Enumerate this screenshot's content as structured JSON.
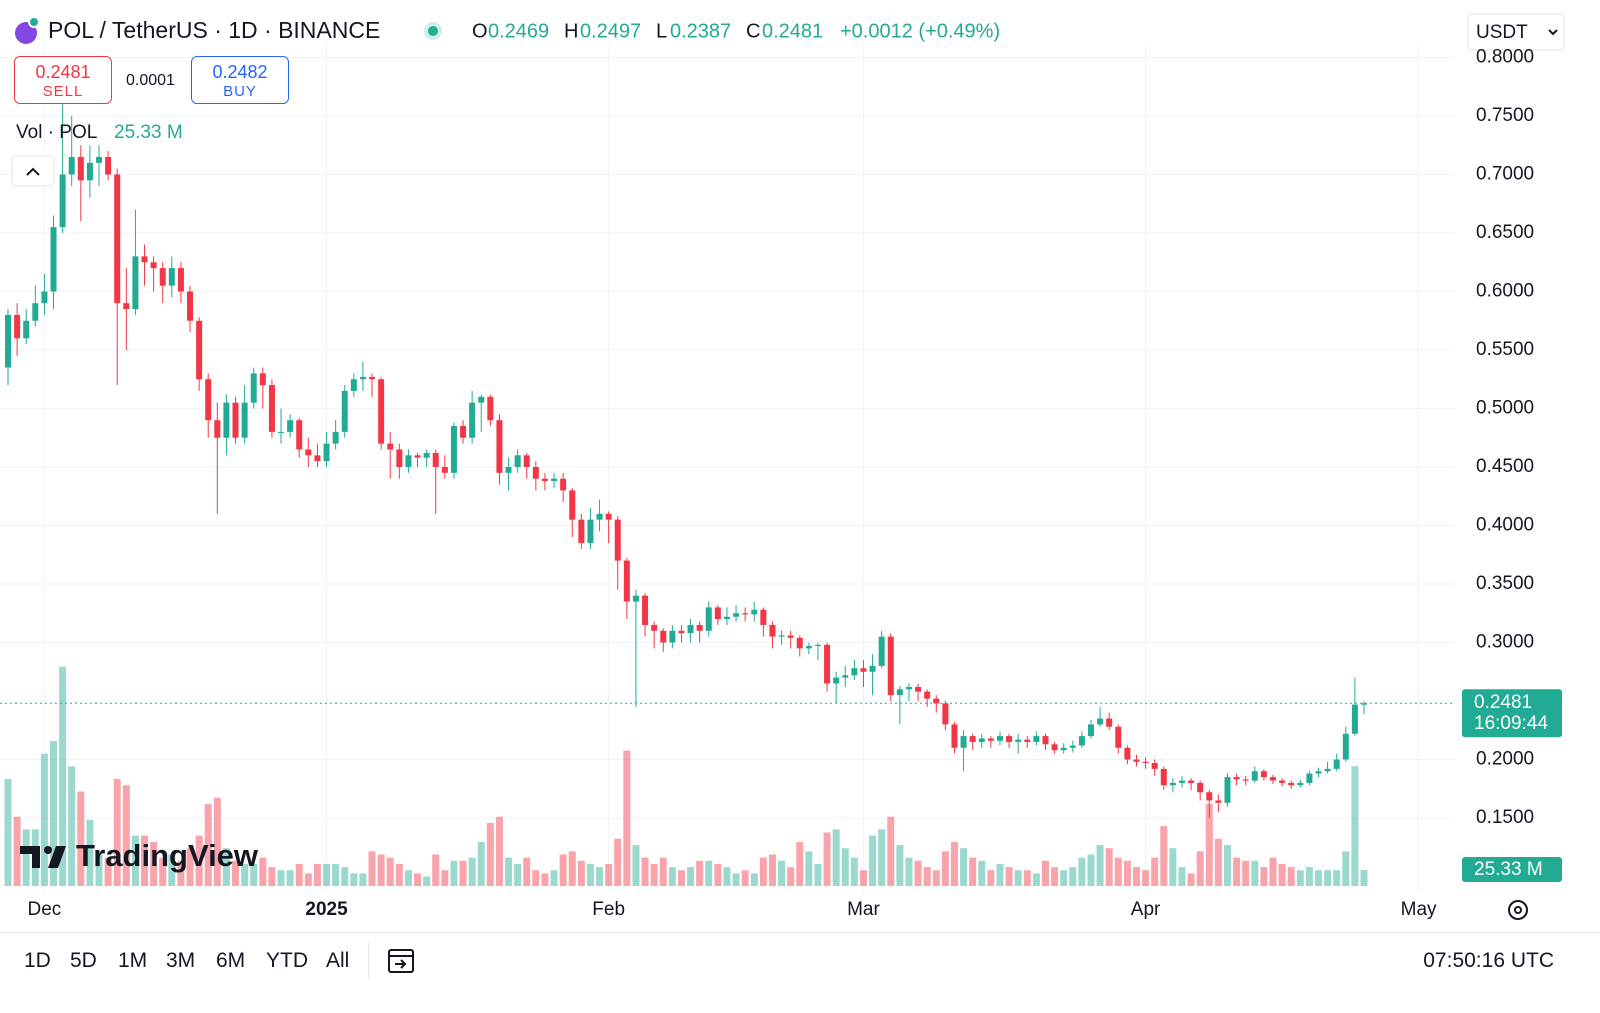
{
  "chart_data": {
    "type": "candlestick",
    "title": "POL / TetherUS · 1D · BINANCE",
    "ohlc_labels": [
      "O",
      "H",
      "L",
      "C"
    ],
    "change": "+0.0012 (+0.49%)",
    "currency": "USDT",
    "sell_label": "SELL",
    "buy_label": "BUY",
    "buy_price": 0.2482,
    "spread": 0.0001,
    "volume_title": "Vol · POL",
    "volume_last_label": "25.33 M",
    "countdown": "16:09:44",
    "brand": "TradingView",
    "ranges": [
      "1D",
      "5D",
      "1M",
      "3M",
      "6M",
      "YTD",
      "All"
    ],
    "time": "07:50:16 UTC",
    "up_color": "#22ab94",
    "down_color": "#f23645",
    "grid": true,
    "xlim": [
      -0.88,
      159
    ],
    "xticks": [
      {
        "value": 4,
        "label": "Dec"
      },
      {
        "value": 35,
        "label": "2025"
      },
      {
        "value": 66,
        "label": "Feb"
      },
      {
        "value": 94,
        "label": "Mar"
      },
      {
        "value": 125,
        "label": "Apr"
      },
      {
        "value": 155,
        "label": "May"
      }
    ],
    "ylim": [
      0.0859,
      0.8423
    ],
    "yticks": [
      {
        "value": 0.15,
        "label": "0.1500"
      },
      {
        "value": 0.2,
        "label": "0.2000"
      },
      {
        "value": 0.25,
        "label": "0.2500"
      },
      {
        "value": 0.3,
        "label": "0.3000"
      },
      {
        "value": 0.35,
        "label": "0.3500"
      },
      {
        "value": 0.4,
        "label": "0.4000"
      },
      {
        "value": 0.45,
        "label": "0.4500"
      },
      {
        "value": 0.5,
        "label": "0.5000"
      },
      {
        "value": 0.55,
        "label": "0.5500"
      },
      {
        "value": 0.6,
        "label": "0.6000"
      },
      {
        "value": 0.65,
        "label": "0.6500"
      },
      {
        "value": 0.7,
        "label": "0.7000"
      },
      {
        "value": 0.75,
        "label": "0.7500"
      },
      {
        "value": 0.8,
        "label": "0.8000"
      }
    ],
    "x": [
      0,
      1,
      2,
      3,
      4,
      5,
      6,
      7,
      8,
      9,
      10,
      11,
      12,
      13,
      14,
      15,
      16,
      17,
      18,
      19,
      20,
      21,
      22,
      23,
      24,
      25,
      26,
      27,
      28,
      29,
      30,
      31,
      32,
      33,
      34,
      35,
      36,
      37,
      38,
      39,
      40,
      41,
      42,
      43,
      44,
      45,
      46,
      47,
      48,
      49,
      50,
      51,
      52,
      53,
      54,
      55,
      56,
      57,
      58,
      59,
      60,
      61,
      62,
      63,
      64,
      65,
      66,
      67,
      68,
      69,
      70,
      71,
      72,
      73,
      74,
      75,
      76,
      77,
      78,
      79,
      80,
      81,
      82,
      83,
      84,
      85,
      86,
      87,
      88,
      89,
      90,
      91,
      92,
      93,
      94,
      95,
      96,
      97,
      98,
      99,
      100,
      101,
      102,
      103,
      104,
      105,
      106,
      107,
      108,
      109,
      110,
      111,
      112,
      113,
      114,
      115,
      116,
      117,
      118,
      119,
      120,
      121,
      122,
      123,
      124,
      125,
      126,
      127,
      128,
      129,
      130,
      131,
      132,
      133,
      134,
      135,
      136,
      137,
      138,
      139,
      140,
      141,
      142,
      143,
      144,
      145,
      146,
      147,
      148,
      149
    ],
    "open": [
      0.535,
      0.58,
      0.56,
      0.575,
      0.59,
      0.6,
      0.655,
      0.7,
      0.715,
      0.695,
      0.71,
      0.715,
      0.7,
      0.59,
      0.585,
      0.63,
      0.625,
      0.62,
      0.605,
      0.62,
      0.6,
      0.575,
      0.525,
      0.49,
      0.475,
      0.505,
      0.475,
      0.505,
      0.53,
      0.52,
      0.48,
      0.48,
      0.49,
      0.465,
      0.46,
      0.455,
      0.47,
      0.48,
      0.515,
      0.525,
      0.527,
      0.525,
      0.47,
      0.465,
      0.45,
      0.46,
      0.458,
      0.462,
      0.45,
      0.445,
      0.485,
      0.475,
      0.505,
      0.51,
      0.49,
      0.445,
      0.45,
      0.46,
      0.45,
      0.44,
      0.438,
      0.44,
      0.43,
      0.405,
      0.385,
      0.405,
      0.41,
      0.405,
      0.37,
      0.335,
      0.34,
      0.315,
      0.31,
      0.3,
      0.31,
      0.308,
      0.315,
      0.31,
      0.33,
      0.32,
      0.322,
      0.325,
      0.324,
      0.328,
      0.315,
      0.305,
      0.306,
      0.304,
      0.295,
      0.297,
      0.298,
      0.265,
      0.27,
      0.272,
      0.278,
      0.275,
      0.28,
      0.305,
      0.255,
      0.26,
      0.262,
      0.258,
      0.252,
      0.248,
      0.23,
      0.21,
      0.22,
      0.215,
      0.218,
      0.216,
      0.22,
      0.215,
      0.217,
      0.215,
      0.22,
      0.213,
      0.208,
      0.21,
      0.212,
      0.22,
      0.23,
      0.235,
      0.228,
      0.21,
      0.2,
      0.198,
      0.197,
      0.192,
      0.178,
      0.18,
      0.182,
      0.18,
      0.172,
      0.165,
      0.163,
      0.185,
      0.183,
      0.182,
      0.19,
      0.185,
      0.182,
      0.18,
      0.178,
      0.18,
      0.188,
      0.19,
      0.192,
      0.2,
      0.222,
      0.2469
    ],
    "high": [
      0.585,
      0.59,
      0.585,
      0.605,
      0.615,
      0.665,
      0.76,
      0.75,
      0.725,
      0.725,
      0.725,
      0.72,
      0.705,
      0.62,
      0.67,
      0.64,
      0.63,
      0.625,
      0.63,
      0.625,
      0.605,
      0.578,
      0.53,
      0.505,
      0.512,
      0.51,
      0.52,
      0.535,
      0.535,
      0.525,
      0.5,
      0.495,
      0.492,
      0.475,
      0.47,
      0.48,
      0.49,
      0.52,
      0.53,
      0.54,
      0.53,
      0.527,
      0.48,
      0.47,
      0.465,
      0.462,
      0.465,
      0.465,
      0.46,
      0.488,
      0.49,
      0.515,
      0.512,
      0.512,
      0.495,
      0.458,
      0.465,
      0.462,
      0.455,
      0.445,
      0.445,
      0.445,
      0.432,
      0.41,
      0.415,
      0.422,
      0.412,
      0.408,
      0.372,
      0.345,
      0.342,
      0.318,
      0.312,
      0.315,
      0.315,
      0.32,
      0.318,
      0.335,
      0.332,
      0.33,
      0.332,
      0.33,
      0.335,
      0.33,
      0.318,
      0.31,
      0.31,
      0.306,
      0.3,
      0.3,
      0.3,
      0.275,
      0.28,
      0.285,
      0.285,
      0.29,
      0.31,
      0.308,
      0.263,
      0.265,
      0.265,
      0.26,
      0.255,
      0.25,
      0.232,
      0.225,
      0.222,
      0.222,
      0.22,
      0.224,
      0.222,
      0.222,
      0.22,
      0.224,
      0.222,
      0.215,
      0.214,
      0.216,
      0.224,
      0.234,
      0.245,
      0.24,
      0.23,
      0.212,
      0.204,
      0.202,
      0.2,
      0.194,
      0.184,
      0.186,
      0.184,
      0.182,
      0.174,
      0.17,
      0.188,
      0.188,
      0.186,
      0.194,
      0.192,
      0.187,
      0.184,
      0.182,
      0.183,
      0.19,
      0.193,
      0.198,
      0.205,
      0.228,
      0.27,
      0.2497
    ],
    "low": [
      0.52,
      0.545,
      0.555,
      0.57,
      0.58,
      0.585,
      0.65,
      0.69,
      0.66,
      0.68,
      0.69,
      0.695,
      0.52,
      0.55,
      0.58,
      0.605,
      0.6,
      0.59,
      0.595,
      0.59,
      0.565,
      0.515,
      0.475,
      0.41,
      0.46,
      0.47,
      0.47,
      0.5,
      0.5,
      0.475,
      0.47,
      0.475,
      0.458,
      0.45,
      0.45,
      0.45,
      0.465,
      0.475,
      0.51,
      0.515,
      0.51,
      0.465,
      0.44,
      0.44,
      0.445,
      0.45,
      0.45,
      0.41,
      0.44,
      0.44,
      0.47,
      0.47,
      0.48,
      0.485,
      0.435,
      0.43,
      0.445,
      0.44,
      0.43,
      0.43,
      0.432,
      0.42,
      0.39,
      0.38,
      0.38,
      0.395,
      0.385,
      0.345,
      0.32,
      0.245,
      0.305,
      0.295,
      0.292,
      0.295,
      0.3,
      0.3,
      0.3,
      0.305,
      0.315,
      0.315,
      0.318,
      0.318,
      0.318,
      0.305,
      0.295,
      0.298,
      0.295,
      0.288,
      0.29,
      0.285,
      0.258,
      0.248,
      0.262,
      0.268,
      0.262,
      0.255,
      0.278,
      0.25,
      0.23,
      0.25,
      0.25,
      0.245,
      0.24,
      0.225,
      0.205,
      0.19,
      0.208,
      0.21,
      0.21,
      0.212,
      0.21,
      0.205,
      0.21,
      0.212,
      0.208,
      0.205,
      0.205,
      0.206,
      0.21,
      0.218,
      0.228,
      0.225,
      0.205,
      0.196,
      0.194,
      0.192,
      0.186,
      0.174,
      0.172,
      0.176,
      0.174,
      0.165,
      0.15,
      0.155,
      0.16,
      0.178,
      0.178,
      0.18,
      0.182,
      0.179,
      0.177,
      0.175,
      0.176,
      0.178,
      0.185,
      0.188,
      0.19,
      0.198,
      0.22,
      0.2387
    ],
    "close": [
      0.58,
      0.56,
      0.575,
      0.59,
      0.6,
      0.655,
      0.7,
      0.715,
      0.695,
      0.71,
      0.715,
      0.7,
      0.59,
      0.585,
      0.63,
      0.625,
      0.62,
      0.605,
      0.62,
      0.6,
      0.575,
      0.525,
      0.49,
      0.475,
      0.505,
      0.475,
      0.505,
      0.53,
      0.52,
      0.48,
      0.48,
      0.49,
      0.465,
      0.46,
      0.455,
      0.47,
      0.48,
      0.515,
      0.525,
      0.527,
      0.525,
      0.47,
      0.465,
      0.45,
      0.46,
      0.458,
      0.462,
      0.45,
      0.445,
      0.485,
      0.475,
      0.505,
      0.51,
      0.49,
      0.445,
      0.45,
      0.46,
      0.45,
      0.44,
      0.438,
      0.44,
      0.43,
      0.405,
      0.385,
      0.405,
      0.41,
      0.405,
      0.37,
      0.335,
      0.34,
      0.315,
      0.31,
      0.3,
      0.31,
      0.308,
      0.315,
      0.31,
      0.33,
      0.32,
      0.322,
      0.325,
      0.324,
      0.328,
      0.315,
      0.305,
      0.306,
      0.304,
      0.295,
      0.297,
      0.298,
      0.265,
      0.27,
      0.272,
      0.278,
      0.275,
      0.28,
      0.305,
      0.255,
      0.26,
      0.262,
      0.258,
      0.252,
      0.248,
      0.23,
      0.21,
      0.22,
      0.215,
      0.218,
      0.216,
      0.22,
      0.215,
      0.217,
      0.215,
      0.22,
      0.213,
      0.208,
      0.21,
      0.212,
      0.22,
      0.23,
      0.235,
      0.228,
      0.21,
      0.2,
      0.198,
      0.197,
      0.192,
      0.178,
      0.18,
      0.182,
      0.18,
      0.172,
      0.165,
      0.163,
      0.185,
      0.183,
      0.182,
      0.19,
      0.185,
      0.182,
      0.18,
      0.178,
      0.18,
      0.188,
      0.19,
      0.192,
      0.2,
      0.222,
      0.2469,
      0.2481
    ],
    "volume": [
      170,
      110,
      90,
      90,
      210,
      230,
      348,
      190,
      150,
      105,
      50,
      45,
      170,
      160,
      80,
      80,
      70,
      45,
      50,
      40,
      60,
      80,
      130,
      140,
      60,
      40,
      35,
      35,
      45,
      30,
      25,
      25,
      35,
      20,
      35,
      35,
      35,
      30,
      20,
      20,
      55,
      50,
      45,
      35,
      25,
      20,
      15,
      50,
      25,
      40,
      40,
      45,
      70,
      100,
      110,
      45,
      35,
      45,
      25,
      20,
      25,
      50,
      55,
      40,
      35,
      30,
      35,
      75,
      215,
      65,
      45,
      35,
      45,
      30,
      25,
      30,
      40,
      40,
      35,
      30,
      20,
      25,
      20,
      45,
      50,
      40,
      30,
      70,
      55,
      35,
      85,
      90,
      60,
      45,
      25,
      80,
      90,
      110,
      65,
      45,
      40,
      30,
      25,
      55,
      70,
      60,
      45,
      40,
      25,
      35,
      30,
      25,
      25,
      20,
      40,
      30,
      25,
      30,
      45,
      50,
      65,
      60,
      45,
      40,
      30,
      25,
      45,
      95,
      60,
      30,
      20,
      55,
      130,
      75,
      65,
      45,
      40,
      40,
      30,
      45,
      35,
      30,
      25,
      30,
      25,
      25,
      25,
      55,
      190,
      25.33
    ]
  }
}
